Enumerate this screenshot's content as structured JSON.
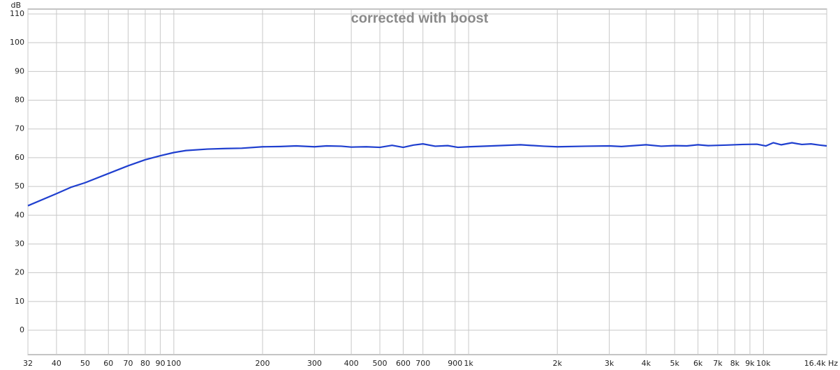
{
  "chart_data": {
    "type": "line",
    "title": "corrected with boost",
    "y_label": "dB",
    "log_x": true,
    "grid": true,
    "xlim": [
      32,
      16400
    ],
    "ylim": [
      -8.5,
      111.7
    ],
    "xticks": [
      32,
      40,
      50,
      60,
      70,
      80,
      90,
      100,
      200,
      300,
      400,
      500,
      600,
      700,
      900,
      {
        "value": 1000,
        "label": "1k"
      },
      {
        "value": 2000,
        "label": "2k"
      },
      {
        "value": 3000,
        "label": "3k"
      },
      {
        "value": 4000,
        "label": "4k"
      },
      {
        "value": 5000,
        "label": "5k"
      },
      {
        "value": 6000,
        "label": "6k"
      },
      {
        "value": 7000,
        "label": "7k"
      },
      {
        "value": 8000,
        "label": "8k"
      },
      {
        "value": 9000,
        "label": "9k"
      },
      {
        "value": 10000,
        "label": "10k"
      },
      {
        "value": 16400,
        "label": "16.4k Hz"
      }
    ],
    "yticks": [
      0,
      10,
      20,
      30,
      40,
      50,
      60,
      70,
      80,
      90,
      100,
      110
    ],
    "x": [
      32,
      40,
      45,
      50,
      60,
      70,
      80,
      90,
      100,
      110,
      130,
      150,
      170,
      200,
      230,
      260,
      300,
      330,
      370,
      400,
      450,
      500,
      550,
      600,
      650,
      700,
      770,
      850,
      920,
      1000,
      1200,
      1500,
      1800,
      2000,
      2500,
      3000,
      3300,
      4000,
      4500,
      5000,
      5500,
      6000,
      6500,
      7500,
      8500,
      9500,
      10200,
      10800,
      11500,
      12500,
      13500,
      14500,
      15500,
      16400
    ],
    "series": [
      {
        "name": "corrected with boost",
        "color": "#1f3fcf",
        "values": [
          43.3,
          47.5,
          49.8,
          51.3,
          54.5,
          57.2,
          59.3,
          60.7,
          61.8,
          62.5,
          63.0,
          63.2,
          63.3,
          63.8,
          63.9,
          64.1,
          63.8,
          64.1,
          64.0,
          63.7,
          63.8,
          63.6,
          64.3,
          63.6,
          64.4,
          64.8,
          64.0,
          64.2,
          63.6,
          63.8,
          64.1,
          64.5,
          64.0,
          63.8,
          64.0,
          64.1,
          63.9,
          64.5,
          64.0,
          64.2,
          64.1,
          64.5,
          64.2,
          64.4,
          64.6,
          64.7,
          64.1,
          65.2,
          64.5,
          65.2,
          64.6,
          64.8,
          64.4,
          64.1
        ]
      }
    ]
  }
}
